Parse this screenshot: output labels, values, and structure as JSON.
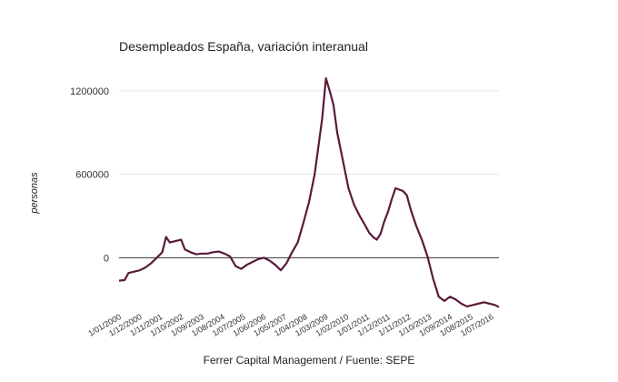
{
  "chart_data": {
    "type": "line",
    "title": "Desempleados España, variación interanual",
    "xlabel": "Ferrer Capital Management / Fuente: SEPE",
    "ylabel": "personas",
    "y_ticks": [
      "1200000",
      "600000",
      "0"
    ],
    "x_tick_labels": [
      "1/01/2000",
      "1/12/2000",
      "1/11/2001",
      "1/10/2002",
      "1/09/2003",
      "1/08/2004",
      "1/07/2005",
      "1/06/2006",
      "1/05/2007",
      "1/04/2008",
      "1/03/2009",
      "1/02/2010",
      "1/01/2011",
      "1/12/2011",
      "1/11/2012",
      "1/10/2013",
      "1/09/2014",
      "1/08/2015",
      "1/07/2016"
    ],
    "ylim": [
      -370000,
      1330000
    ],
    "grid": true,
    "line_color": "#5a1a3a",
    "series": [
      {
        "points": [
          [
            "2000-01",
            -165000
          ],
          [
            "2000-04",
            -160000
          ],
          [
            "2000-06",
            -110000
          ],
          [
            "2000-09",
            -100000
          ],
          [
            "2000-12",
            -90000
          ],
          [
            "2001-03",
            -70000
          ],
          [
            "2001-06",
            -40000
          ],
          [
            "2001-09",
            0
          ],
          [
            "2001-12",
            40000
          ],
          [
            "2002-02",
            150000
          ],
          [
            "2002-04",
            110000
          ],
          [
            "2002-07",
            120000
          ],
          [
            "2002-10",
            130000
          ],
          [
            "2002-12",
            60000
          ],
          [
            "2003-03",
            40000
          ],
          [
            "2003-06",
            25000
          ],
          [
            "2003-09",
            30000
          ],
          [
            "2003-12",
            30000
          ],
          [
            "2004-03",
            40000
          ],
          [
            "2004-06",
            45000
          ],
          [
            "2004-09",
            30000
          ],
          [
            "2004-12",
            10000
          ],
          [
            "2005-03",
            -60000
          ],
          [
            "2005-06",
            -80000
          ],
          [
            "2005-09",
            -50000
          ],
          [
            "2005-12",
            -30000
          ],
          [
            "2006-03",
            -10000
          ],
          [
            "2006-06",
            0
          ],
          [
            "2006-09",
            -20000
          ],
          [
            "2006-12",
            -50000
          ],
          [
            "2007-03",
            -90000
          ],
          [
            "2007-06",
            -40000
          ],
          [
            "2007-09",
            40000
          ],
          [
            "2007-12",
            110000
          ],
          [
            "2008-03",
            250000
          ],
          [
            "2008-06",
            400000
          ],
          [
            "2008-09",
            600000
          ],
          [
            "2008-12",
            900000
          ],
          [
            "2009-01",
            1000000
          ],
          [
            "2009-03",
            1290000
          ],
          [
            "2009-05",
            1200000
          ],
          [
            "2009-07",
            1100000
          ],
          [
            "2009-09",
            900000
          ],
          [
            "2009-12",
            700000
          ],
          [
            "2010-03",
            500000
          ],
          [
            "2010-06",
            380000
          ],
          [
            "2010-09",
            300000
          ],
          [
            "2010-12",
            230000
          ],
          [
            "2011-02",
            180000
          ],
          [
            "2011-04",
            150000
          ],
          [
            "2011-06",
            130000
          ],
          [
            "2011-08",
            170000
          ],
          [
            "2011-10",
            260000
          ],
          [
            "2011-12",
            330000
          ],
          [
            "2012-02",
            420000
          ],
          [
            "2012-04",
            500000
          ],
          [
            "2012-06",
            490000
          ],
          [
            "2012-08",
            480000
          ],
          [
            "2012-10",
            450000
          ],
          [
            "2012-12",
            350000
          ],
          [
            "2013-03",
            230000
          ],
          [
            "2013-06",
            130000
          ],
          [
            "2013-09",
            10000
          ],
          [
            "2013-12",
            -150000
          ],
          [
            "2014-03",
            -280000
          ],
          [
            "2014-06",
            -310000
          ],
          [
            "2014-09",
            -280000
          ],
          [
            "2014-12",
            -300000
          ],
          [
            "2015-03",
            -330000
          ],
          [
            "2015-06",
            -350000
          ],
          [
            "2015-09",
            -340000
          ],
          [
            "2015-12",
            -330000
          ],
          [
            "2016-03",
            -320000
          ],
          [
            "2016-06",
            -330000
          ],
          [
            "2016-09",
            -340000
          ],
          [
            "2016-11",
            -355000
          ]
        ]
      }
    ]
  }
}
